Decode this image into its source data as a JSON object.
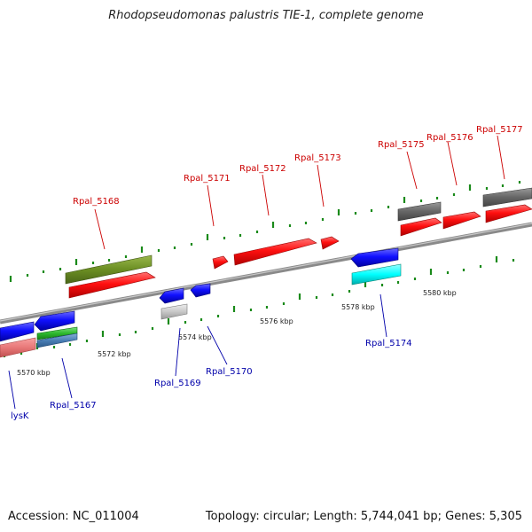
{
  "title": "Rhodopseudomonas palustris TIE-1, complete genome",
  "footer": {
    "accession": "Accession: NC_011004",
    "summary": "Topology: circular; Length: 5,744,041 bp; Genes: 5,305"
  },
  "colors": {
    "backbone": "#8a8a8a",
    "red_gene": "#ff1a1a",
    "blue_gene": "#1a1aff",
    "label_red": "#cc0000",
    "label_blue": "#0000aa",
    "olive": "#6b8e23",
    "gray_gene": "#666666",
    "tick_green": "#1a8a1a"
  },
  "scale_labels": [
    "5570 kbp",
    "5572 kbp",
    "5574 kbp",
    "5576 kbp",
    "5578 kbp",
    "5580 kbp"
  ],
  "gene_labels": [
    {
      "id": "lysK",
      "strand": "minus"
    },
    {
      "id": "Rpal_5167",
      "strand": "minus"
    },
    {
      "id": "Rpal_5168",
      "strand": "plus"
    },
    {
      "id": "Rpal_5169",
      "strand": "minus"
    },
    {
      "id": "Rpal_5170",
      "strand": "minus"
    },
    {
      "id": "Rpal_5171",
      "strand": "plus"
    },
    {
      "id": "Rpal_5172",
      "strand": "plus"
    },
    {
      "id": "Rpal_5173",
      "strand": "plus"
    },
    {
      "id": "Rpal_5174",
      "strand": "minus"
    },
    {
      "id": "Rpal_5175",
      "strand": "plus"
    },
    {
      "id": "Rpal_5176",
      "strand": "plus"
    },
    {
      "id": "Rpal_5177",
      "strand": "plus"
    }
  ]
}
